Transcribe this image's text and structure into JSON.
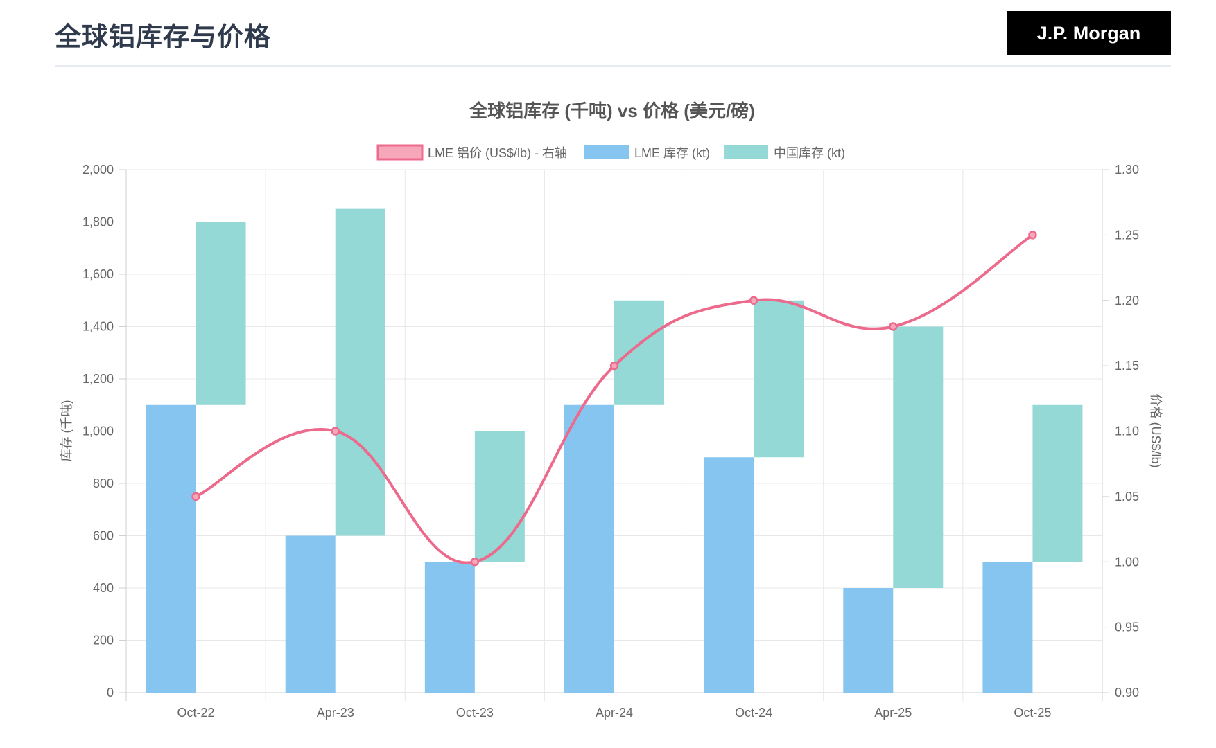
{
  "page": {
    "title": "全球铝库存与价格",
    "brand": "J.P. Morgan"
  },
  "chart_data": {
    "type": "bar",
    "title": "全球铝库存 (千吨) vs 价格 (美元/磅)",
    "categories": [
      "Oct-22",
      "Apr-23",
      "Oct-23",
      "Apr-24",
      "Oct-24",
      "Apr-25",
      "Oct-25"
    ],
    "series": [
      {
        "name": "LME 铝价 (US$/lb) - 右轴",
        "type": "line",
        "axis": "right",
        "values": [
          1.05,
          1.1,
          1.0,
          1.15,
          1.2,
          1.18,
          1.25
        ],
        "color": "#ec6a8c"
      },
      {
        "name": "LME 库存 (kt)",
        "type": "bar",
        "axis": "left",
        "values": [
          1100,
          600,
          500,
          1100,
          900,
          400,
          500
        ],
        "color": "#86c5f0"
      },
      {
        "name": "中国库存 (kt)",
        "type": "floating-bar",
        "axis": "left",
        "ranges": [
          [
            1100,
            1800
          ],
          [
            600,
            1850
          ],
          [
            500,
            1000
          ],
          [
            1100,
            1500
          ],
          [
            900,
            1500
          ],
          [
            400,
            1400
          ],
          [
            500,
            1100
          ]
        ],
        "color": "#94d9d6"
      }
    ],
    "ylabel": "库存 (千吨)",
    "y2label": "价格 (US$/lb)",
    "ylim": [
      0,
      2000
    ],
    "yticks": [
      0,
      200,
      400,
      600,
      800,
      1000,
      1200,
      1400,
      1600,
      1800,
      2000
    ],
    "ytick_labels": [
      "0",
      "200",
      "400",
      "600",
      "800",
      "1,000",
      "1,200",
      "1,400",
      "1,600",
      "1,800",
      "2,000"
    ],
    "y2lim": [
      0.9,
      1.3
    ],
    "y2ticks": [
      0.9,
      0.95,
      1.0,
      1.05,
      1.1,
      1.15,
      1.2,
      1.25,
      1.3
    ],
    "y2tick_labels": [
      "0.90",
      "0.95",
      "1.00",
      "1.05",
      "1.10",
      "1.15",
      "1.20",
      "1.25",
      "1.30"
    ],
    "legend_position": "top-center",
    "grid": true
  }
}
